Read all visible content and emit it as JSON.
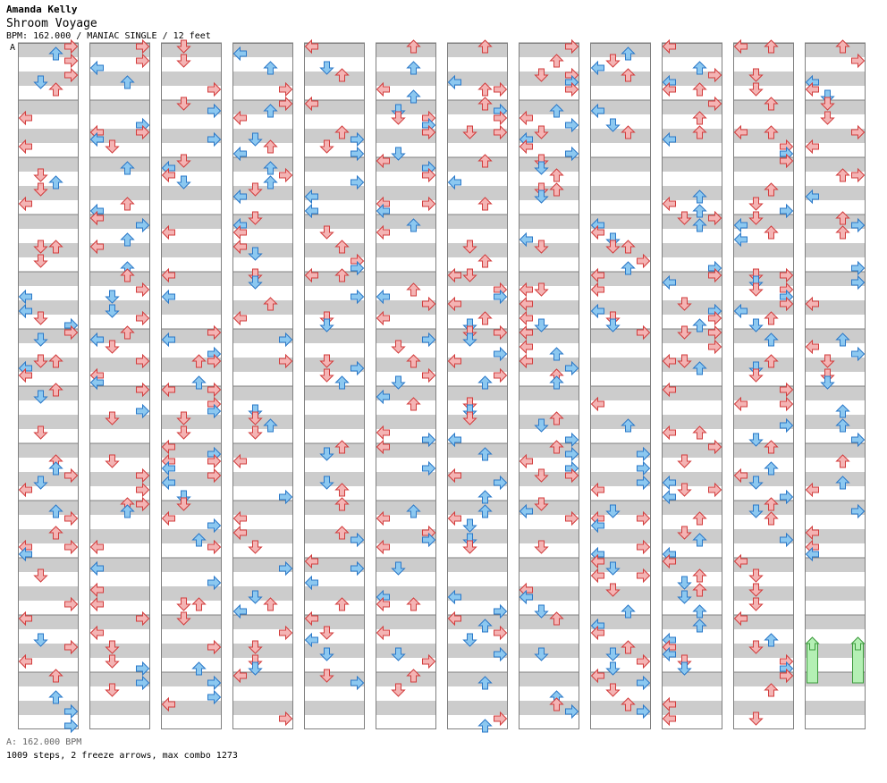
{
  "header": {
    "artist": "Amanda Kelly",
    "title": "Shroom Voyage",
    "info": "BPM: 162.000 / MANIAC SINGLE / 12 feet",
    "bpm_marker": "A"
  },
  "footer": {
    "bpm_note": "A: 162.000 BPM",
    "stats": "1009 steps, 2 freeze arrows, max combo 1273"
  },
  "colors": {
    "quarter_arrow": "#f4b4b4",
    "quarter_stroke": "#d23c3c",
    "eighth_arrow": "#8cc8f0",
    "eighth_stroke": "#2a78c8",
    "freeze": "#b4f0b4",
    "freeze_stroke": "#3c9a3c",
    "band": "#cccccc",
    "border": "#808080"
  },
  "layout_info": {
    "columns": 12,
    "measures_per_column": 12,
    "lanes": [
      "left",
      "down",
      "up",
      "right"
    ]
  }
}
